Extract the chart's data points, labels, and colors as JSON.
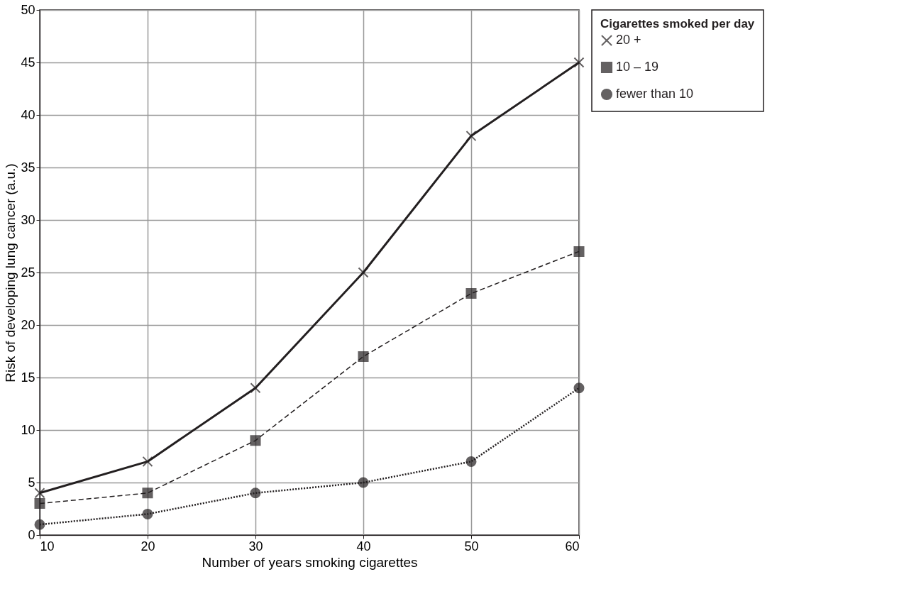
{
  "chart_data": {
    "type": "line",
    "xlabel": "Number of years smoking cigarettes",
    "ylabel": "Risk of developing lung cancer (a.u.)",
    "legend_title": "Cigarettes smoked per day",
    "x": [
      10,
      20,
      30,
      40,
      50,
      60
    ],
    "series": [
      {
        "name": "20 +",
        "color": "#231f20",
        "values": [
          4,
          7,
          14,
          25,
          38,
          45
        ],
        "marker": "cross",
        "line_style": "solid"
      },
      {
        "name": "10 – 19",
        "color": "#231f20",
        "values": [
          3,
          4,
          9,
          17,
          23,
          27
        ],
        "marker": "square",
        "line_style": "dashed"
      },
      {
        "name": "fewer than 10",
        "color": "#231f20",
        "values": [
          1,
          2,
          4,
          5,
          7,
          14
        ],
        "marker": "circle",
        "line_style": "dotted"
      }
    ],
    "xlim": [
      10,
      60
    ],
    "xticks": [
      10,
      20,
      30,
      40,
      50,
      60
    ],
    "ylim": [
      0,
      50
    ],
    "yticks": [
      0,
      5,
      10,
      15,
      20,
      25,
      30,
      35,
      40,
      45,
      50
    ],
    "grid": true,
    "legend": "top right"
  }
}
